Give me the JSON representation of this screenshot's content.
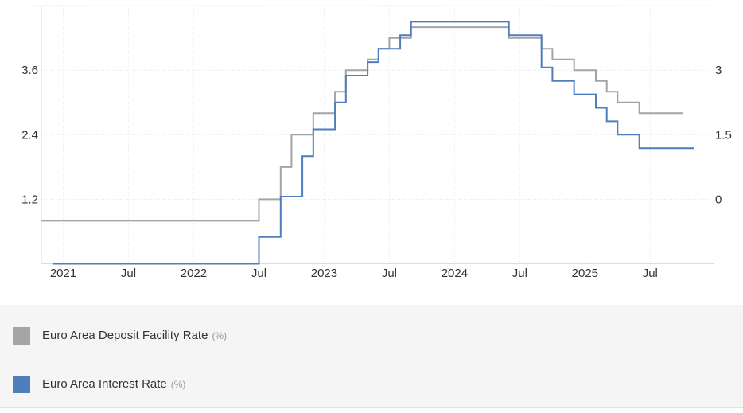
{
  "chart_data": {
    "type": "line",
    "step_interpolation": true,
    "title": "",
    "x_unit": "month",
    "x_start": "2020-11",
    "x_ticks": [
      {
        "m": 2,
        "label": "2021"
      },
      {
        "m": 8,
        "label": "Jul"
      },
      {
        "m": 14,
        "label": "2022"
      },
      {
        "m": 20,
        "label": "Jul"
      },
      {
        "m": 26,
        "label": "2023"
      },
      {
        "m": 32,
        "label": "Jul"
      },
      {
        "m": 38,
        "label": "2024"
      },
      {
        "m": 44,
        "label": "Jul"
      },
      {
        "m": 50,
        "label": "2025"
      },
      {
        "m": 56,
        "label": "Jul"
      }
    ],
    "left_axis": {
      "ticks": [
        {
          "v": 1.2,
          "label": "1.2"
        },
        {
          "v": 2.4,
          "label": "2.4"
        },
        {
          "v": 3.6,
          "label": "3.6"
        }
      ],
      "min": 0,
      "max": 4.8,
      "grid_step": 1.2
    },
    "right_axis": {
      "ticks": [
        {
          "v": 0,
          "label": "0"
        },
        {
          "v": 1.5,
          "label": "1.5"
        },
        {
          "v": 3,
          "label": "3"
        }
      ],
      "min": -1.5,
      "max": 4.5,
      "grid_step": 1.5
    },
    "grid": true,
    "legend_position": "bottom",
    "series": [
      {
        "name": "Euro Area Deposit Facility Rate",
        "unit": "(%)",
        "axis": "right",
        "color": "#a4a4a4",
        "start_month": "2020-11",
        "end_month": "2025-10",
        "end_month_offset": 59,
        "changes": [
          [
            0,
            -0.5
          ],
          [
            20,
            0
          ],
          [
            22,
            0.75
          ],
          [
            23,
            1.5
          ],
          [
            25,
            2
          ],
          [
            27,
            2.5
          ],
          [
            28,
            3
          ],
          [
            30,
            3.25
          ],
          [
            31,
            3.5
          ],
          [
            32,
            3.75
          ],
          [
            34,
            4
          ],
          [
            43,
            3.75
          ],
          [
            46,
            3.5
          ],
          [
            47,
            3.25
          ],
          [
            49,
            3
          ],
          [
            51,
            2.75
          ],
          [
            52,
            2.5
          ],
          [
            53,
            2.25
          ],
          [
            55,
            2
          ]
        ]
      },
      {
        "name": "Euro Area Interest Rate",
        "unit": "(%)",
        "axis": "left",
        "color": "#4e7ebc",
        "start_month": "2020-12",
        "end_month": "2025-11",
        "end_month_offset": 60,
        "changes": [
          [
            1,
            0
          ],
          [
            20,
            0.5
          ],
          [
            22,
            1.25
          ],
          [
            24,
            2
          ],
          [
            25,
            2.5
          ],
          [
            27,
            3
          ],
          [
            28,
            3.5
          ],
          [
            30,
            3.75
          ],
          [
            31,
            4
          ],
          [
            33,
            4.25
          ],
          [
            34,
            4.5
          ],
          [
            43,
            4.25
          ],
          [
            46,
            3.65
          ],
          [
            47,
            3.4
          ],
          [
            49,
            3.15
          ],
          [
            51,
            2.9
          ],
          [
            52,
            2.65
          ],
          [
            53,
            2.4
          ],
          [
            55,
            2.15
          ]
        ]
      }
    ]
  },
  "legend": {
    "items": [
      {
        "label": "Euro Area Deposit Facility Rate",
        "unit": "(%)",
        "color": "#a5a5a5"
      },
      {
        "label": "Euro Area Interest Rate",
        "unit": "(%)",
        "color": "#4e7ebc"
      }
    ]
  },
  "colors": {
    "grid": "#e2e2e2",
    "plot_border": "#e6e6e6",
    "axis_text": "#333333",
    "legend_bg": "#f5f5f5",
    "legend_border": "#e2e2e2"
  }
}
